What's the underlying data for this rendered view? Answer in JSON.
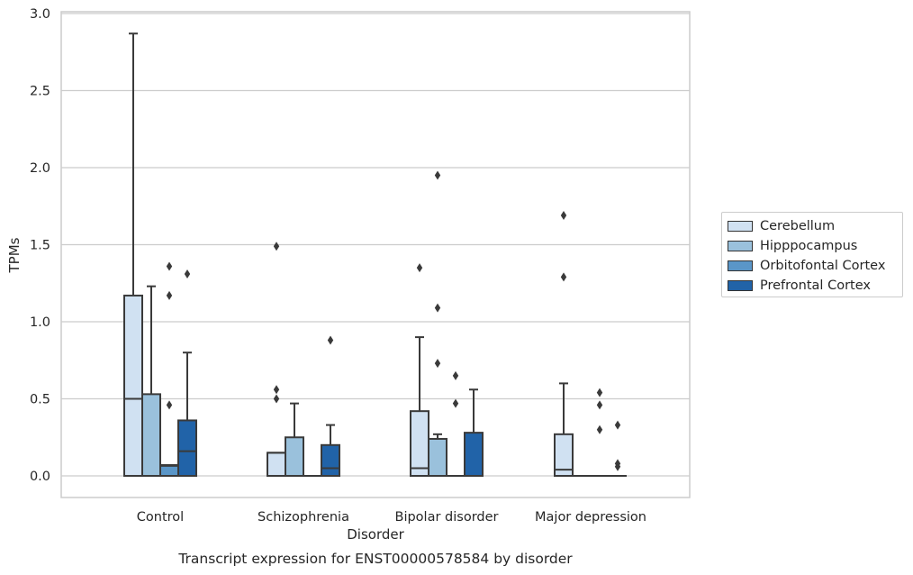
{
  "chart_data": {
    "type": "box",
    "title": "Transcript expression for ENST00000578584 by disorder",
    "xlabel": "Disorder",
    "ylabel": "TPMs",
    "ylim": [
      -0.14,
      3.02
    ],
    "yticks": [
      "0.0",
      "0.5",
      "1.0",
      "1.5",
      "2.0",
      "2.5",
      "3.0"
    ],
    "grid": true,
    "legend_position": "right",
    "categories": [
      "Control",
      "Schizophrenia",
      "Bipolar disorder",
      "Major depression"
    ],
    "series": [
      {
        "name": "Cerebellum",
        "color": "#d0e1f2",
        "boxes": [
          {
            "q1": 0.0,
            "median": 0.5,
            "q3": 1.17,
            "whisker_low": 0.0,
            "whisker_high": 2.87,
            "outliers": []
          },
          {
            "q1": 0.0,
            "median": 0.15,
            "q3": 0.15,
            "whisker_low": 0.0,
            "whisker_high": 0.15,
            "outliers": [
              0.5,
              0.56,
              1.49
            ]
          },
          {
            "q1": 0.0,
            "median": 0.05,
            "q3": 0.42,
            "whisker_low": 0.0,
            "whisker_high": 0.9,
            "outliers": [
              1.35
            ]
          },
          {
            "q1": 0.0,
            "median": 0.04,
            "q3": 0.27,
            "whisker_low": 0.0,
            "whisker_high": 0.6,
            "outliers": [
              1.29,
              1.69
            ]
          }
        ]
      },
      {
        "name": "Hipppocampus",
        "color": "#9ac1dc",
        "boxes": [
          {
            "q1": 0.0,
            "median": 0.0,
            "q3": 0.53,
            "whisker_low": 0.0,
            "whisker_high": 1.23,
            "outliers": []
          },
          {
            "q1": 0.0,
            "median": 0.0,
            "q3": 0.25,
            "whisker_low": 0.0,
            "whisker_high": 0.47,
            "outliers": []
          },
          {
            "q1": 0.0,
            "median": 0.0,
            "q3": 0.24,
            "whisker_low": 0.0,
            "whisker_high": 0.27,
            "outliers": [
              0.73,
              1.09,
              1.95
            ]
          },
          {
            "q1": 0.0,
            "median": 0.0,
            "q3": 0.0,
            "whisker_low": 0.0,
            "whisker_high": 0.0,
            "outliers": []
          }
        ]
      },
      {
        "name": "Orbitofontal Cortex",
        "color": "#5a96c8",
        "boxes": [
          {
            "q1": 0.0,
            "median": 0.065,
            "q3": 0.07,
            "whisker_low": 0.0,
            "whisker_high": 0.07,
            "outliers": [
              0.46,
              1.17,
              1.36
            ]
          },
          {
            "q1": 0.0,
            "median": 0.0,
            "q3": 0.0,
            "whisker_low": 0.0,
            "whisker_high": 0.0,
            "outliers": []
          },
          {
            "q1": 0.0,
            "median": 0.0,
            "q3": 0.0,
            "whisker_low": 0.0,
            "whisker_high": 0.0,
            "outliers": [
              0.47,
              0.65
            ]
          },
          {
            "q1": 0.0,
            "median": 0.0,
            "q3": 0.0,
            "whisker_low": 0.0,
            "whisker_high": 0.0,
            "outliers": [
              0.3,
              0.46,
              0.54
            ]
          }
        ]
      },
      {
        "name": "Prefrontal Cortex",
        "color": "#2163a8",
        "boxes": [
          {
            "q1": 0.0,
            "median": 0.16,
            "q3": 0.36,
            "whisker_low": 0.0,
            "whisker_high": 0.8,
            "outliers": [
              1.31
            ]
          },
          {
            "q1": 0.0,
            "median": 0.05,
            "q3": 0.2,
            "whisker_low": 0.0,
            "whisker_high": 0.33,
            "outliers": [
              0.88
            ]
          },
          {
            "q1": 0.0,
            "median": 0.0,
            "q3": 0.28,
            "whisker_low": 0.0,
            "whisker_high": 0.56,
            "outliers": []
          },
          {
            "q1": 0.0,
            "median": 0.0,
            "q3": 0.0,
            "whisker_low": 0.0,
            "whisker_high": 0.0,
            "outliers": [
              0.06,
              0.08,
              0.33
            ]
          }
        ]
      }
    ]
  }
}
